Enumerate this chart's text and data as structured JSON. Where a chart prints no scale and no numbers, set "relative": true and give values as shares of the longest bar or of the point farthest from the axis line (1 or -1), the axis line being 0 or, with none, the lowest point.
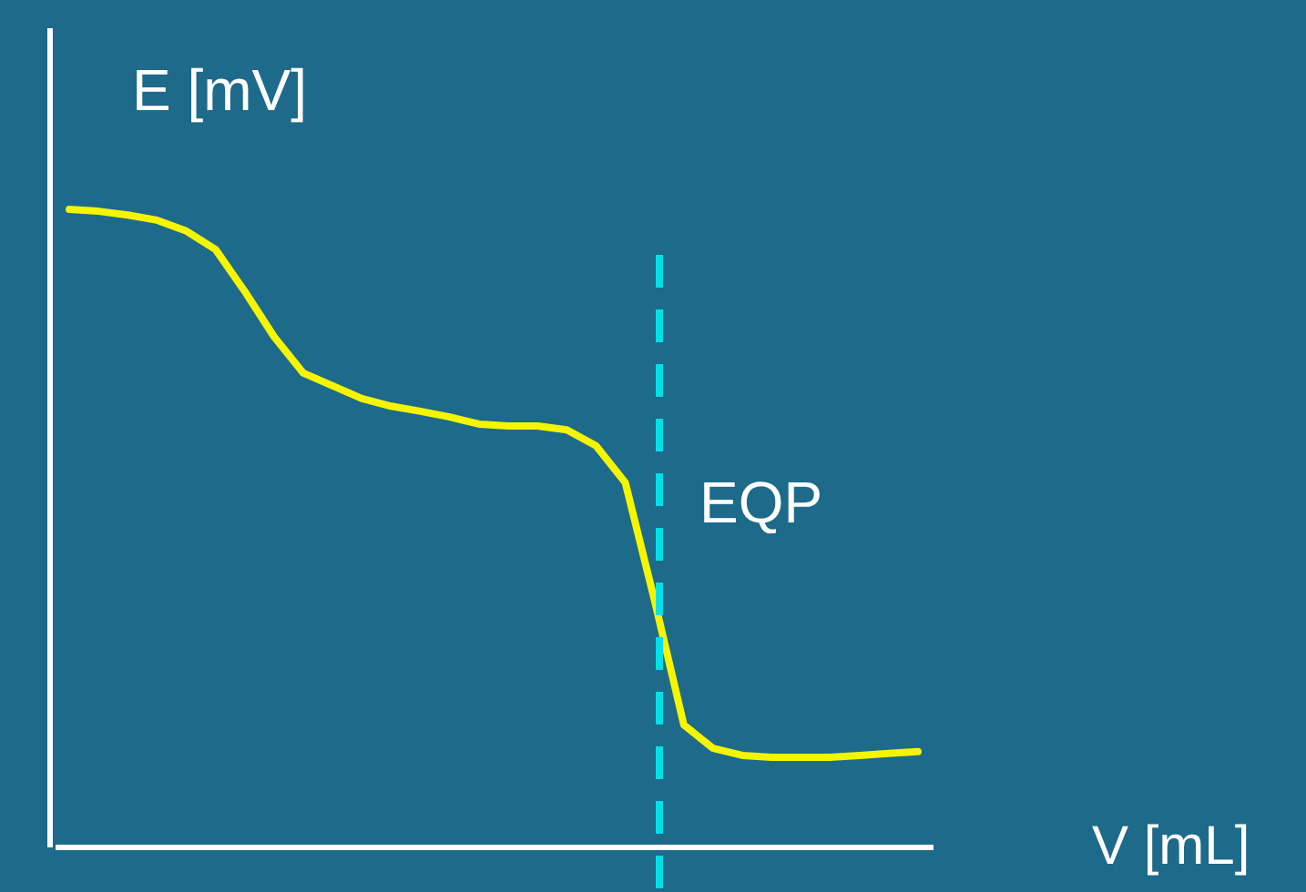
{
  "chart_data": {
    "type": "line",
    "relative": true,
    "xlabel": "V [mL]",
    "ylabel": "E [mV]",
    "marker": "none",
    "line_style": "solid",
    "categories": [
      null,
      null,
      null,
      null,
      null,
      null,
      null,
      null,
      null,
      null,
      null,
      null,
      null,
      null,
      null,
      null,
      null,
      null,
      null,
      null,
      null,
      null,
      null,
      null,
      null,
      null,
      null,
      null,
      null,
      null
    ],
    "series": [
      {
        "color": "#f5f500",
        "values": [
          1.0,
          0.997,
          0.991,
          0.983,
          0.966,
          0.937,
          0.871,
          0.8,
          0.743,
          0.723,
          0.703,
          0.691,
          0.683,
          0.674,
          0.663,
          0.66,
          0.66,
          0.654,
          0.629,
          0.571,
          0.386,
          0.191,
          0.154,
          0.143,
          0.14,
          0.14,
          0.14,
          0.143,
          0.146,
          0.149
        ]
      }
    ],
    "annotations": [
      "EQP"
    ]
  }
}
